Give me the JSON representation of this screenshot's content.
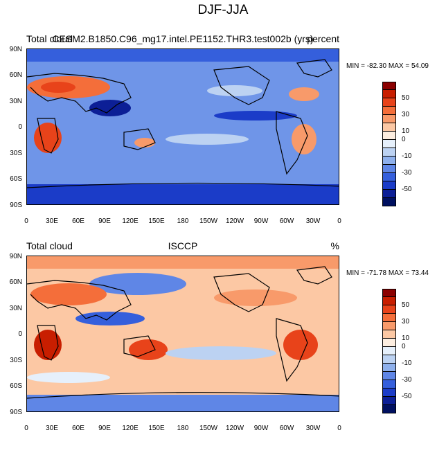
{
  "figure": {
    "title": "DJF-JJA"
  },
  "panels": [
    {
      "left_label": "Total cloud",
      "center_label": "CESM2.B1850.C96_mg17.intel.PE1152.THR3.test002b (yrs)",
      "right_label": "percent",
      "min_label": "MIN = -82.30",
      "max_label": "MAX =  54.09"
    },
    {
      "left_label": "Total cloud",
      "center_label": "ISCCP",
      "right_label": "%",
      "min_label": "MIN = -71.78",
      "max_label": "MAX =  73.44"
    }
  ],
  "axes": {
    "lat_ticks": [
      "90N",
      "60N",
      "30N",
      "0",
      "30S",
      "60S",
      "90S"
    ],
    "lon_ticks": [
      "0",
      "30E",
      "60E",
      "90E",
      "120E",
      "150E",
      "180",
      "150W",
      "120W",
      "90W",
      "60W",
      "30W",
      "0"
    ]
  },
  "colorbar": {
    "labels": [
      "50",
      "30",
      "10",
      "0",
      "-10",
      "-30",
      "-50"
    ],
    "colors": [
      "#8b0000",
      "#c81e00",
      "#e8431a",
      "#f46e3a",
      "#f89a6a",
      "#fcc8a4",
      "#fdeee0",
      "#e6f0fb",
      "#bcd2f2",
      "#8eb0ec",
      "#5f86e6",
      "#355fdc",
      "#1b3cc8",
      "#0c1f96",
      "#001060"
    ]
  }
}
